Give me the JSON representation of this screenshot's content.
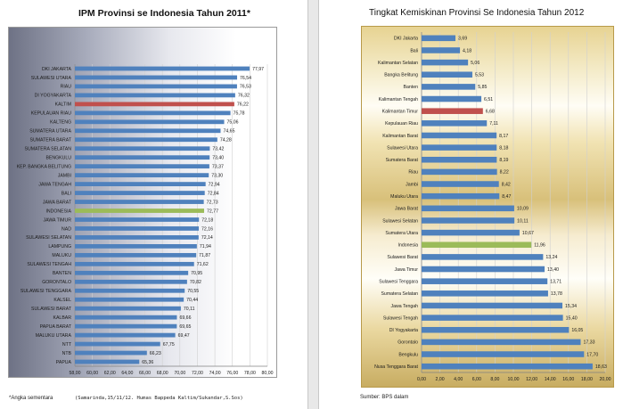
{
  "colors": {
    "bar_default": "#4f81bd",
    "bar_highlight_red": "#c0504d",
    "bar_highlight_green": "#9bbb59",
    "grid": "#d0d0d0",
    "label_text": "#1a1a1a"
  },
  "left": {
    "title": "IPM Provinsi se Indonesia Tahun 2011*",
    "note": "*Angka sementara",
    "credit": "(Samarinda,15/11/12. Humas Bappeda Kaltim/Sukandar,S.Sos)"
  },
  "right": {
    "title": "Tingkat Kemiskinan  Provinsi Se Indonesia  Tahun  2012",
    "source": "Sumber: BPS dalam"
  },
  "chart_data": [
    {
      "type": "bar",
      "orientation": "horizontal",
      "title": "IPM Provinsi se Indonesia Tahun 2011*",
      "xlim": [
        58.0,
        80.0
      ],
      "xticks": [
        "58,00",
        "60,00",
        "62,00",
        "64,00",
        "66,00",
        "68,00",
        "70,00",
        "72,00",
        "74,00",
        "76,00",
        "78,00",
        "80,00"
      ],
      "grid": true,
      "categories": [
        "DKI JAKARTA",
        "SULAWESI UTARA",
        "RIAU",
        "DI YOGYAKARTA",
        "KALTIM",
        "KEPULAUAN RIAU",
        "KALTENG",
        "SUMATERA UTARA",
        "SUMATERA BARAT",
        "SUMATERA SELATAN",
        "BENGKULU",
        "KEP. BANGKA BELITUNG",
        "JAMBI",
        "JAWA TENGAH",
        "BALI",
        "JAWA BARAT",
        "INDONESIA",
        "JAWA TIMUR",
        "NAD",
        "SULAWESI SELATAN",
        "LAMPUNG",
        "MALUKU",
        "SULAWESI TENGAH",
        "BANTEN",
        "GORONTALO",
        "SULAWESI TENGGARA",
        "KALSEL",
        "SULAWESI BARAT",
        "KALBAR",
        "PAPUA BARAT",
        "MALUKU UTARA",
        "NTT",
        "NTB",
        "PAPUA"
      ],
      "values": [
        77.97,
        76.54,
        76.53,
        76.32,
        76.22,
        75.78,
        75.06,
        74.65,
        74.28,
        73.42,
        73.4,
        73.37,
        73.3,
        72.94,
        72.84,
        72.73,
        72.77,
        72.18,
        72.16,
        72.14,
        71.94,
        71.87,
        71.62,
        70.95,
        70.82,
        70.55,
        70.44,
        70.11,
        69.66,
        69.65,
        69.47,
        67.75,
        66.23,
        65.36
      ],
      "labels": [
        "77,97",
        "76,54",
        "76,53",
        "76,32",
        "76,22",
        "75,78",
        "75,06",
        "74,65",
        "74,28",
        "73,42",
        "73,40",
        "73,37",
        "73,30",
        "72,94",
        "72,84",
        "72,73",
        "72,77",
        "72,18",
        "72,16",
        "72,14",
        "71,94",
        "71,87",
        "71,62",
        "70,95",
        "70,82",
        "70,55",
        "70,44",
        "70,11",
        "69,66",
        "69,65",
        "69,47",
        "67,75",
        "66,23",
        "65,36"
      ],
      "highlight": {
        "KALTIM": "red",
        "INDONESIA": "green"
      }
    },
    {
      "type": "bar",
      "orientation": "horizontal",
      "title": "Tingkat Kemiskinan  Provinsi Se Indonesia  Tahun  2012",
      "xlim": [
        0.0,
        20.0
      ],
      "xticks": [
        "0,00",
        "2,00",
        "4,00",
        "6,00",
        "8,00",
        "10,00",
        "12,00",
        "14,00",
        "16,00",
        "18,00",
        "20,00"
      ],
      "grid": true,
      "categories": [
        "DKI Jakarta",
        "Bali",
        "Kalimantan Selatan",
        "Bangka Belitung",
        "Banten",
        "Kalimantan Tengah",
        "Kalimantan Timur",
        "Kepulauan Riau",
        "Kalimantan Barat",
        "Sulawesi Utara",
        "Sumatera Barat",
        "Riau",
        "Jambi",
        "Maluku Utara",
        "Jawa Barat",
        "Sulawesi Selatan",
        "Sumatera Utara",
        "Indonesia",
        "Sulawesi Barat",
        "Jawa Timur",
        "Sulawesi Tenggara",
        "Sumatera Selatan",
        "Jawa Tengah",
        "Sulawesi Tengah",
        "DI Yogyakarta",
        "Gorontalo",
        "Bengkulu",
        "Nusa Tenggara Barat"
      ],
      "values": [
        3.69,
        4.18,
        5.06,
        5.53,
        5.85,
        6.51,
        6.68,
        7.11,
        8.17,
        8.18,
        8.19,
        8.22,
        8.42,
        8.47,
        10.09,
        10.11,
        10.67,
        11.96,
        13.24,
        13.4,
        13.71,
        13.78,
        15.34,
        15.4,
        16.05,
        17.33,
        17.7,
        18.63
      ],
      "labels": [
        "3,69",
        "4,18",
        "5,06",
        "5,53",
        "5,85",
        "6,51",
        "6,68",
        "7,11",
        "8,17",
        "8,18",
        "8,19",
        "8,22",
        "8,42",
        "8,47",
        "10,09",
        "10,11",
        "10,67",
        "11,96",
        "13,24",
        "13,40",
        "13,71",
        "13,78",
        "15,34",
        "15,40",
        "16,05",
        "17,33",
        "17,70",
        "18,63"
      ],
      "highlight": {
        "Kalimantan Timur": "red",
        "Indonesia": "green"
      }
    }
  ]
}
